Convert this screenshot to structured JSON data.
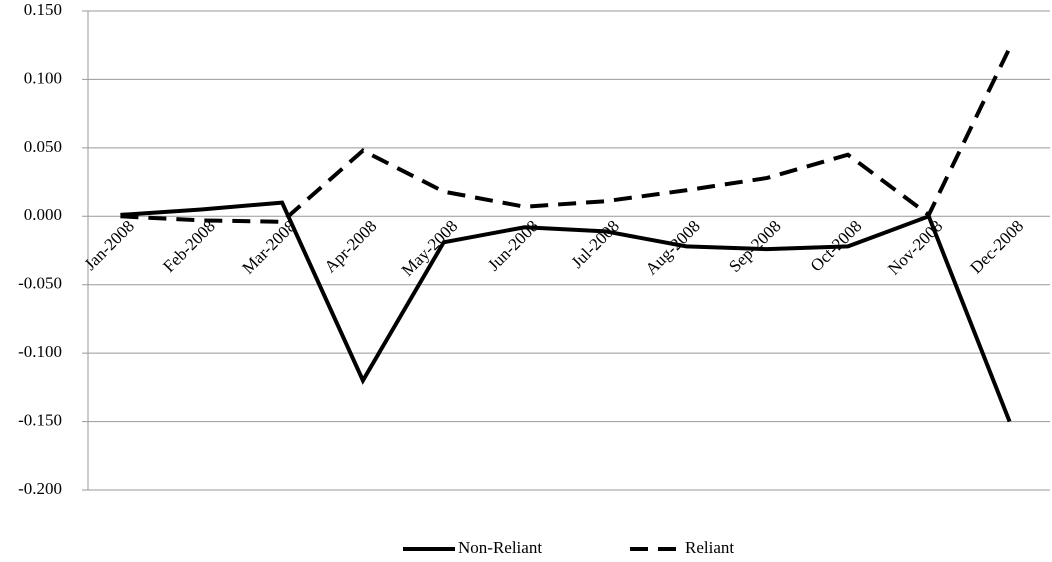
{
  "chart_data": {
    "type": "line",
    "categories": [
      "Jan-2008",
      "Feb-2008",
      "Mar-2008",
      "Apr-2008",
      "May-2008",
      "Jun-2008",
      "Jul-2008",
      "Aug-2008",
      "Sep-2008",
      "Oct-2008",
      "Nov-2008",
      "Dec-2008"
    ],
    "series": [
      {
        "name": "Non-Reliant",
        "color": "#000000",
        "line_style": "solid",
        "values": [
          0.001,
          0.005,
          0.01,
          -0.12,
          -0.019,
          -0.008,
          -0.011,
          -0.022,
          -0.024,
          -0.022,
          0.0,
          -0.15
        ]
      },
      {
        "name": "Reliant",
        "color": "#000000",
        "line_style": "dashed",
        "values": [
          0.0,
          -0.003,
          -0.004,
          0.048,
          0.018,
          0.007,
          0.011,
          0.019,
          0.028,
          0.045,
          0.001,
          0.123
        ]
      }
    ],
    "ylim": [
      -0.2,
      0.15
    ],
    "yticks": [
      {
        "value": -0.2,
        "label": "-0.200"
      },
      {
        "value": -0.15,
        "label": "-0.150"
      },
      {
        "value": -0.1,
        "label": "-0.100"
      },
      {
        "value": -0.05,
        "label": "-0.050"
      },
      {
        "value": 0,
        "label": "0.000"
      },
      {
        "value": 0.05,
        "label": "0.050"
      },
      {
        "value": 0.1,
        "label": "0.100"
      },
      {
        "value": 0.15,
        "label": "0.150"
      }
    ],
    "grid": true,
    "legend": "bottom"
  }
}
